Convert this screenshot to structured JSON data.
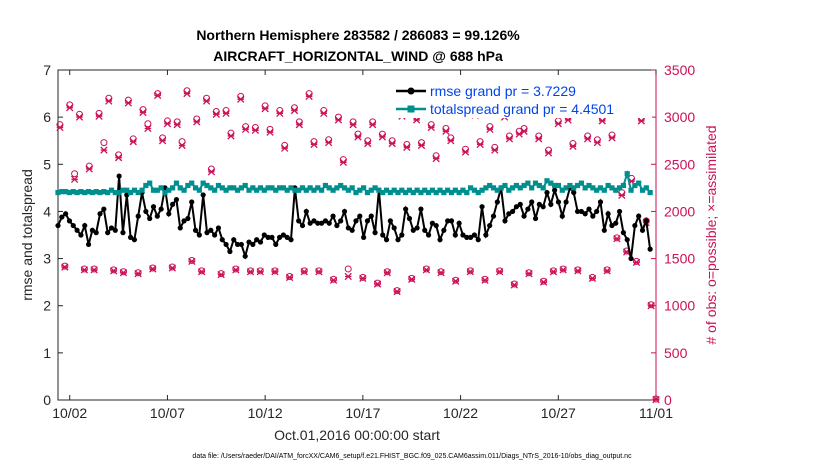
{
  "chart_data": {
    "type": "line",
    "title_line1": "Northern Hemisphere 283582 / 286083 = 99.126%",
    "title_line2": "AIRCRAFT_HORIZONTAL_WIND @ 688 hPa",
    "xlabel": "Oct.01,2016 00:00:00 start",
    "ylabel": "rmse and totalspread",
    "ylabel_right": "# of obs: o=possible; ×=assimilated",
    "footer": "data file: /Users/raeder/DAI/ATM_forcXX/CAM6_setup/f.e21.FHIST_BGC.f09_025.CAM6assim.011/Diags_NTrS_2016-10/obs_diag_output.nc",
    "xlim": [
      1.4,
      32
    ],
    "ylim": [
      0,
      7
    ],
    "ylim_right": [
      0,
      3500
    ],
    "xticks": [
      2,
      7,
      12,
      17,
      22,
      27,
      32
    ],
    "xtick_labels": [
      "10/02",
      "10/07",
      "10/12",
      "10/17",
      "10/22",
      "10/27",
      "11/01"
    ],
    "yticks": [
      0,
      1,
      2,
      3,
      4,
      5,
      6,
      7
    ],
    "yticks_right": [
      0,
      500,
      1000,
      1500,
      2000,
      2500,
      3000,
      3500
    ],
    "legend": [
      "rmse grand pr = 3.7229",
      "totalspread grand pr = 4.4501"
    ],
    "series": [
      {
        "name": "rmse",
        "color": "#000000",
        "axis": "left",
        "values": [
          3.7,
          3.88,
          3.95,
          3.8,
          3.7,
          3.6,
          3.5,
          3.7,
          3.3,
          3.6,
          3.55,
          3.95,
          4.05,
          3.55,
          3.65,
          3.6,
          4.75,
          3.55,
          4.35,
          3.45,
          3.4,
          3.9,
          4.4,
          4.0,
          3.85,
          4.1,
          3.9,
          4.05,
          4.5,
          3.95,
          4.15,
          4.25,
          3.65,
          3.8,
          3.85,
          4.2,
          3.6,
          3.5,
          4.35,
          3.55,
          3.6,
          3.5,
          3.65,
          3.4,
          3.3,
          3.15,
          3.4,
          3.3,
          3.3,
          3.05,
          3.35,
          3.3,
          3.4,
          3.35,
          3.5,
          3.45,
          3.45,
          3.3,
          3.45,
          3.5,
          3.45,
          3.4,
          4.5,
          3.8,
          3.7,
          4.0,
          3.75,
          3.8,
          3.75,
          3.75,
          3.8,
          3.75,
          3.9,
          3.7,
          3.8,
          4.0,
          3.65,
          3.6,
          3.8,
          3.9,
          3.45,
          3.8,
          3.9,
          3.55,
          4.45,
          3.5,
          3.4,
          3.8,
          3.65,
          3.4,
          3.5,
          4.05,
          3.85,
          3.6,
          3.65,
          4.05,
          3.6,
          3.5,
          3.75,
          3.7,
          3.4,
          3.6,
          3.8,
          3.8,
          3.5,
          3.75,
          3.5,
          3.45,
          3.45,
          3.5,
          3.4,
          4.1,
          3.5,
          3.7,
          3.9,
          4.2,
          4.5,
          3.8,
          3.95,
          4.0,
          4.1,
          4.15,
          3.9,
          4.05,
          4.2,
          3.85,
          4.15,
          4.1,
          4.4,
          4.15,
          4.45,
          4.2,
          3.9,
          4.2,
          4.5,
          4.4,
          4.0,
          4.0,
          3.95,
          4.05,
          3.9,
          4.0,
          4.2,
          3.6,
          3.95,
          3.7,
          3.75,
          4.0,
          3.55,
          3.4,
          3.0,
          3.7,
          3.9,
          3.6,
          3.8,
          3.2
        ]
      },
      {
        "name": "totalspread",
        "color": "#008f8f",
        "axis": "left",
        "values": [
          4.4,
          4.42,
          4.42,
          4.4,
          4.42,
          4.4,
          4.42,
          4.4,
          4.42,
          4.4,
          4.42,
          4.4,
          4.42,
          4.4,
          4.45,
          4.4,
          4.4,
          4.45,
          4.45,
          4.4,
          4.45,
          4.4,
          4.45,
          4.55,
          4.6,
          4.45,
          4.45,
          4.5,
          4.4,
          4.45,
          4.5,
          4.6,
          4.5,
          4.45,
          4.55,
          4.6,
          4.5,
          4.45,
          4.6,
          4.55,
          4.5,
          4.45,
          4.55,
          4.5,
          4.45,
          4.5,
          4.5,
          4.45,
          4.5,
          4.55,
          4.45,
          4.5,
          4.45,
          4.5,
          4.45,
          4.5,
          4.5,
          4.45,
          4.5,
          4.5,
          4.45,
          4.5,
          4.45,
          4.45,
          4.5,
          4.45,
          4.5,
          4.45,
          4.5,
          4.45,
          4.55,
          4.5,
          4.45,
          4.5,
          4.55,
          4.5,
          4.45,
          4.5,
          4.4,
          4.45,
          4.5,
          4.4,
          4.45,
          4.5,
          4.45,
          4.4,
          4.45,
          4.4,
          4.45,
          4.4,
          4.45,
          4.4,
          4.45,
          4.4,
          4.45,
          4.4,
          4.45,
          4.4,
          4.45,
          4.4,
          4.45,
          4.4,
          4.45,
          4.4,
          4.45,
          4.4,
          4.45,
          4.4,
          4.5,
          4.45,
          4.4,
          4.45,
          4.5,
          4.55,
          4.5,
          4.45,
          4.5,
          4.55,
          4.45,
          4.5,
          4.55,
          4.5,
          4.55,
          4.6,
          4.5,
          4.6,
          4.55,
          4.5,
          4.65,
          4.6,
          4.55,
          4.55,
          4.45,
          4.5,
          4.55,
          4.5,
          4.55,
          4.6,
          4.5,
          4.55,
          4.5,
          4.45,
          4.5,
          4.45,
          4.55,
          4.5,
          4.45,
          4.5,
          4.55,
          4.8,
          4.45,
          4.55,
          4.6,
          4.45,
          4.5,
          4.4
        ]
      }
    ],
    "obs_possible": {
      "name": "possible",
      "marker": "o",
      "color": "#cc1158",
      "axis": "right",
      "times": [
        1.5,
        1.75,
        2.0,
        2.25,
        2.5,
        2.75,
        3.0,
        3.25,
        3.5,
        3.75,
        4.0,
        4.25,
        4.5,
        4.75,
        5.0,
        5.25,
        5.5,
        5.75,
        6.0,
        6.25,
        6.5,
        6.75,
        7.0,
        7.25,
        7.5,
        7.75,
        8.0,
        8.25,
        8.5,
        8.75,
        9.0,
        9.25,
        9.5,
        9.75,
        10.0,
        10.25,
        10.5,
        10.75,
        11.0,
        11.25,
        11.5,
        11.75,
        12.0,
        12.25,
        12.5,
        12.75,
        13.0,
        13.25,
        13.5,
        13.75,
        14.0,
        14.25,
        14.5,
        14.75,
        15.0,
        15.25,
        15.5,
        15.75,
        16.0,
        16.25,
        16.5,
        16.75,
        17.0,
        17.25,
        17.5,
        17.75,
        18.0,
        18.25,
        18.5,
        18.75,
        19.0,
        19.25,
        19.5,
        19.75,
        20.0,
        20.25,
        20.5,
        20.75,
        21.0,
        21.25,
        21.5,
        21.75,
        22.0,
        22.25,
        22.5,
        22.75,
        23.0,
        23.25,
        23.5,
        23.75,
        24.0,
        24.25,
        24.5,
        24.75,
        25.0,
        25.25,
        25.5,
        25.75,
        26.0,
        26.25,
        26.5,
        26.75,
        27.0,
        27.25,
        27.5,
        27.75,
        28.0,
        28.25,
        28.5,
        28.75,
        29.0,
        29.25,
        29.5,
        29.75,
        30.0,
        30.25,
        30.5,
        30.75,
        31.0,
        31.25,
        31.5,
        31.75,
        32.0
      ],
      "values": [
        2920,
        1420,
        3130,
        2400,
        3030,
        1390,
        2480,
        1390,
        3040,
        2730,
        3200,
        1380,
        2600,
        1360,
        3180,
        2770,
        1350,
        3080,
        2930,
        1400,
        3250,
        2780,
        2960,
        1410,
        2950,
        2740,
        3280,
        1480,
        2980,
        1370,
        3200,
        2450,
        3060,
        1340,
        3070,
        2830,
        1390,
        3220,
        2900,
        1370,
        2890,
        1370,
        3120,
        2870,
        1370,
        3070,
        2700,
        1310,
        3100,
        2950,
        1370,
        3250,
        2740,
        1370,
        3070,
        2760,
        1280,
        3000,
        2550,
        1390,
        2950,
        2820,
        1300,
        2750,
        2950,
        1240,
        2820,
        1360,
        2750,
        1160,
        3040,
        2710,
        1290,
        3000,
        2730,
        1390,
        2920,
        2590,
        1360,
        2880,
        2780,
        1270,
        3120,
        2660,
        1370,
        3050,
        2740,
        1280,
        2900,
        2680,
        1370,
        3030,
        2800,
        1230,
        2850,
        2880,
        1350,
        3100,
        2800,
        1260,
        2650,
        1370,
        2960,
        1390,
        3000,
        2720,
        1380,
        3090,
        2800,
        1300,
        2760,
        2990,
        1380,
        2810,
        1720,
        2200,
        1580,
        2350,
        1470,
        2990,
        1900,
        1010,
        10
      ]
    },
    "obs_assimilated": {
      "name": "assimilated",
      "marker": "×",
      "color": "#cc1158",
      "axis": "right",
      "times": [
        1.5,
        1.75,
        2.0,
        2.25,
        2.5,
        2.75,
        3.0,
        3.25,
        3.5,
        3.75,
        4.0,
        4.25,
        4.5,
        4.75,
        5.0,
        5.25,
        5.5,
        5.75,
        6.0,
        6.25,
        6.5,
        6.75,
        7.0,
        7.25,
        7.5,
        7.75,
        8.0,
        8.25,
        8.5,
        8.75,
        9.0,
        9.25,
        9.5,
        9.75,
        10.0,
        10.25,
        10.5,
        10.75,
        11.0,
        11.25,
        11.5,
        11.75,
        12.0,
        12.25,
        12.5,
        12.75,
        13.0,
        13.25,
        13.5,
        13.75,
        14.0,
        14.25,
        14.5,
        14.75,
        15.0,
        15.25,
        15.5,
        15.75,
        16.0,
        16.25,
        16.5,
        16.75,
        17.0,
        17.25,
        17.5,
        17.75,
        18.0,
        18.25,
        18.5,
        18.75,
        19.0,
        19.25,
        19.5,
        19.75,
        20.0,
        20.25,
        20.5,
        20.75,
        21.0,
        21.25,
        21.5,
        21.75,
        22.0,
        22.25,
        22.5,
        22.75,
        23.0,
        23.25,
        23.5,
        23.75,
        24.0,
        24.25,
        24.5,
        24.75,
        25.0,
        25.25,
        25.5,
        25.75,
        26.0,
        26.25,
        26.5,
        26.75,
        27.0,
        27.25,
        27.5,
        27.75,
        28.0,
        28.25,
        28.5,
        28.75,
        29.0,
        29.25,
        29.5,
        29.75,
        30.0,
        30.25,
        30.5,
        30.75,
        31.0,
        31.25,
        31.5,
        31.75,
        32.0
      ],
      "values": [
        2890,
        1410,
        3100,
        2340,
        3000,
        1380,
        2450,
        1380,
        3010,
        2650,
        3170,
        1370,
        2570,
        1350,
        3150,
        2740,
        1340,
        3050,
        2880,
        1390,
        3230,
        2750,
        2930,
        1400,
        2920,
        2700,
        3250,
        1470,
        2950,
        1360,
        3170,
        2420,
        3030,
        1330,
        3040,
        2800,
        1380,
        3190,
        2870,
        1360,
        2860,
        1360,
        3090,
        2840,
        1360,
        3040,
        2670,
        1300,
        3070,
        2920,
        1360,
        3220,
        2710,
        1360,
        3040,
        2730,
        1270,
        2970,
        2520,
        1310,
        2920,
        2790,
        1290,
        2720,
        2920,
        1230,
        2790,
        1350,
        2720,
        1150,
        3010,
        2680,
        1280,
        2970,
        2700,
        1380,
        2890,
        2560,
        1350,
        2850,
        2750,
        1260,
        3090,
        2630,
        1360,
        3020,
        2710,
        1270,
        2870,
        2650,
        1360,
        3000,
        2770,
        1220,
        2820,
        2850,
        1340,
        3070,
        2770,
        1250,
        2620,
        1360,
        2930,
        1380,
        2970,
        2690,
        1370,
        3060,
        2770,
        1290,
        2730,
        2960,
        1370,
        2780,
        1710,
        2170,
        1570,
        2320,
        1460,
        2960,
        1880,
        1000,
        5
      ]
    }
  }
}
